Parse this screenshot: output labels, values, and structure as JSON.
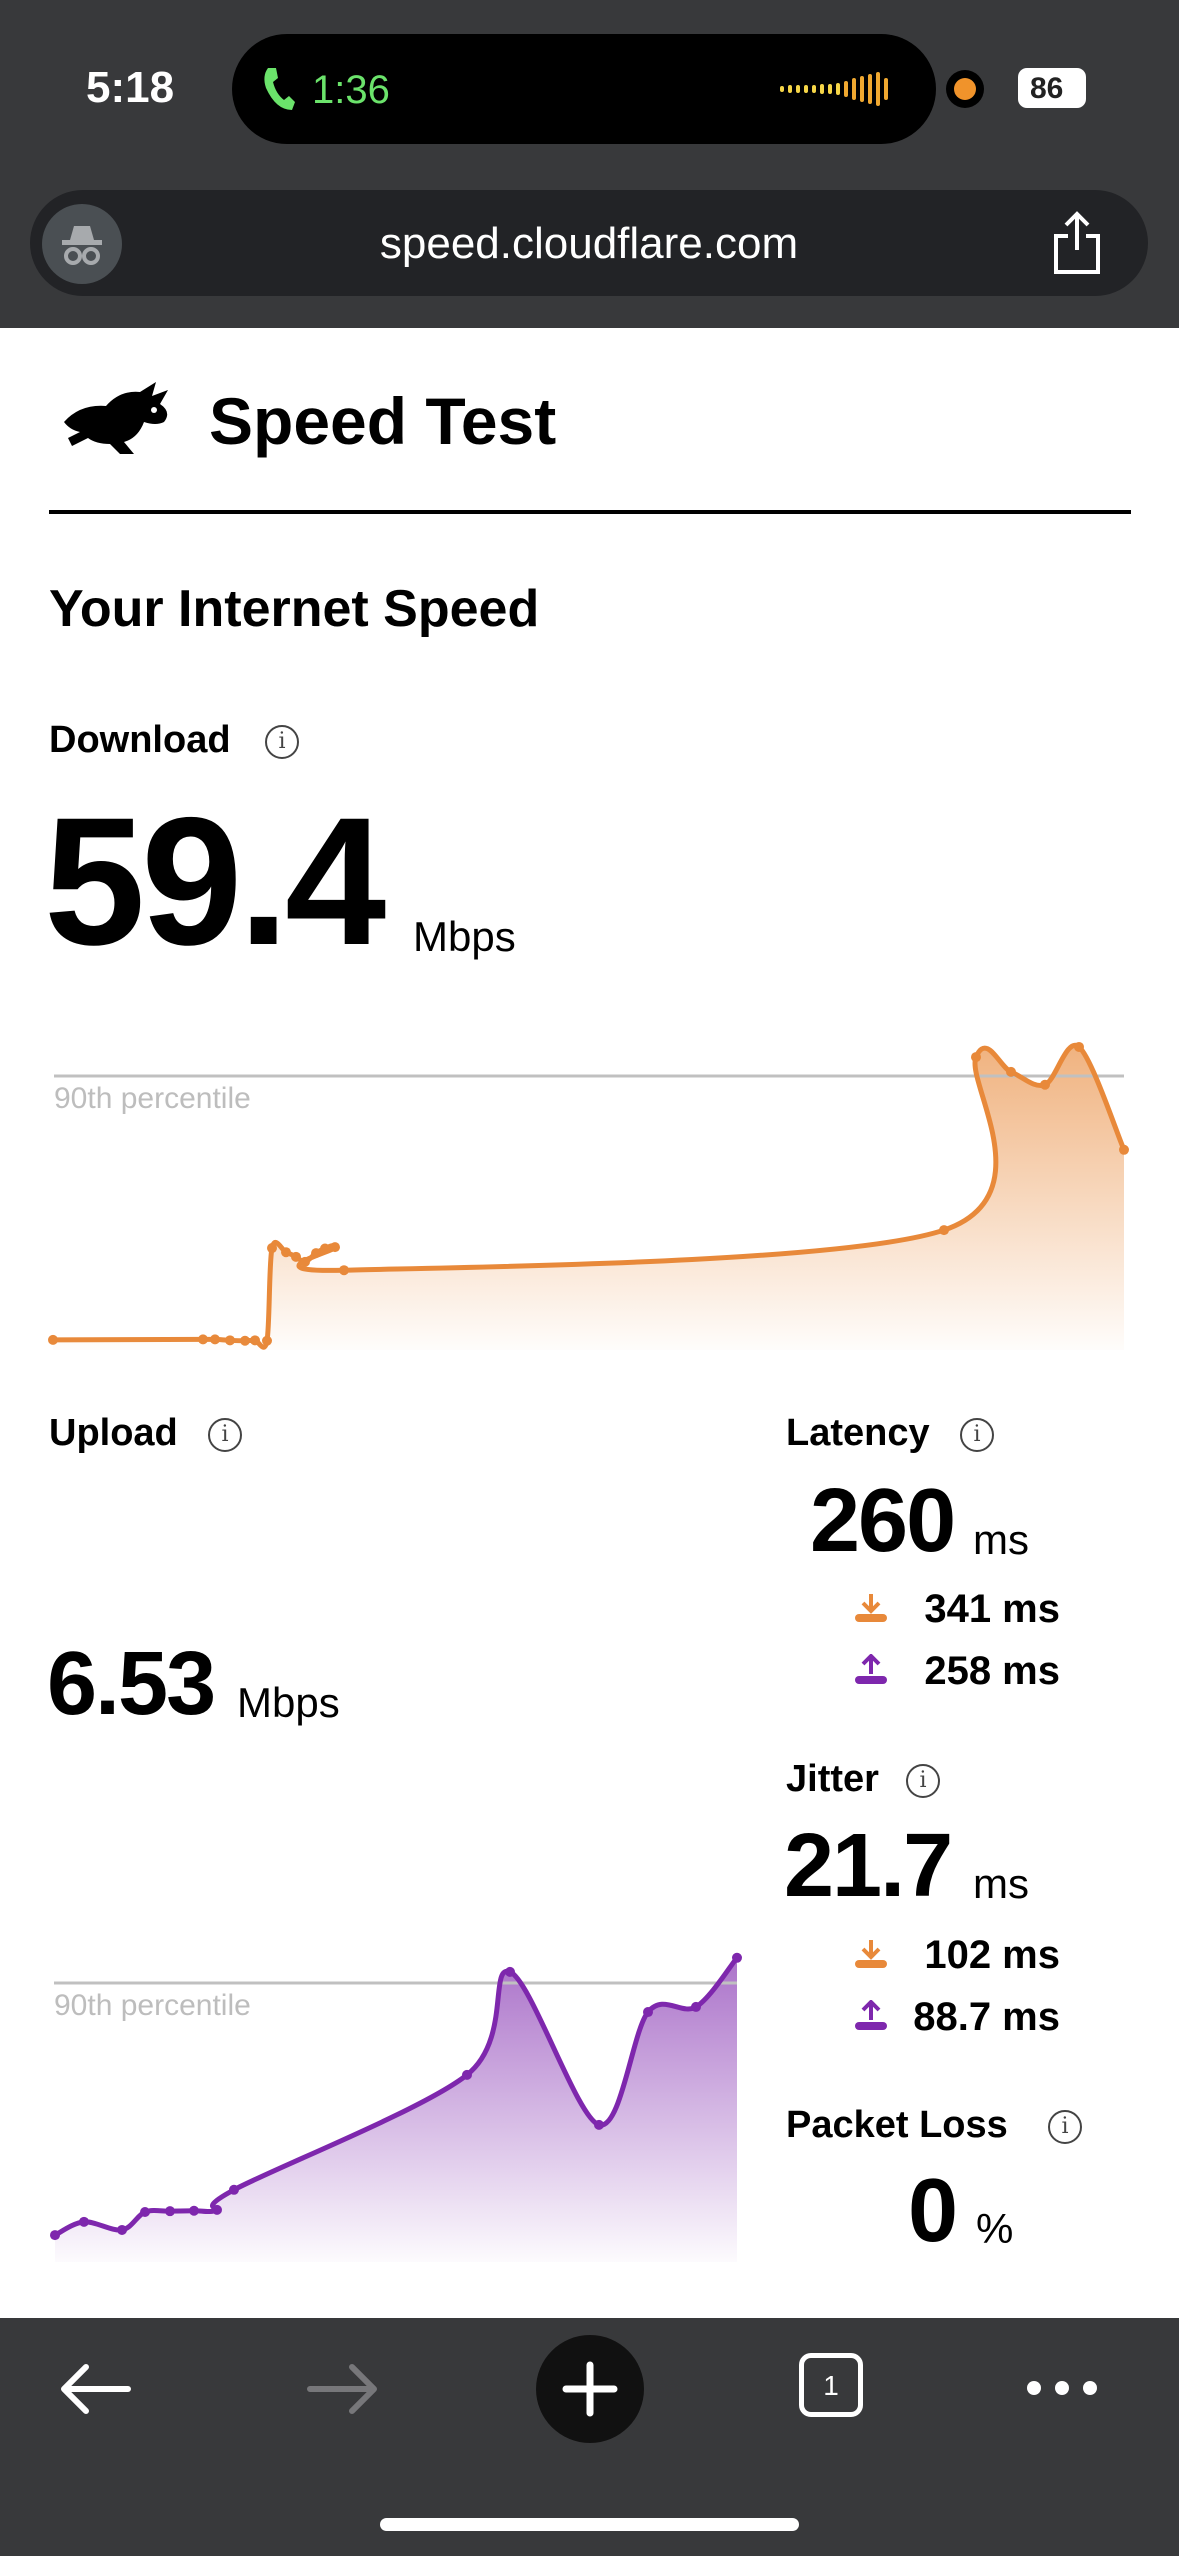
{
  "status_bar": {
    "time": "5:18",
    "call_duration": "1:36",
    "battery": "86"
  },
  "browser": {
    "url": "speed.cloudflare.com",
    "incognito_icon": "incognito-icon",
    "share_icon": "share-icon"
  },
  "header": {
    "title": "Speed Test",
    "logo": "rabbit-logo"
  },
  "main": {
    "section_title": "Your Internet Speed",
    "download": {
      "label": "Download",
      "value": "59.4",
      "unit": "Mbps",
      "percentile_label": "90th percentile"
    },
    "upload": {
      "label": "Upload",
      "value": "6.53",
      "unit": "Mbps",
      "percentile_label": "90th percentile"
    },
    "latency": {
      "label": "Latency",
      "value": "260",
      "unit": "ms",
      "download_value": "341 ms",
      "upload_value": "258 ms"
    },
    "jitter": {
      "label": "Jitter",
      "value": "21.7",
      "unit": "ms",
      "download_value": "102 ms",
      "upload_value": "88.7 ms"
    },
    "packet_loss": {
      "label": "Packet Loss",
      "value": "0",
      "unit": "%"
    }
  },
  "colors": {
    "download": "#e8893a",
    "upload": "#7e27ad",
    "percentile_line": "#c0c0c0"
  },
  "chart_data": [
    {
      "type": "area",
      "series": [
        {
          "values": [
            2.2,
            2.3,
            2.3,
            2.1,
            2.0,
            2.1,
            2.0,
            22.1,
            21.2,
            20.2,
            19.1,
            21.0,
            22.0,
            22.3,
            17.3,
            26.0,
            63.5,
            60.3,
            57.5,
            65.7,
            43.4
          ]
        }
      ],
      "reference_line": {
        "label": "90th percentile",
        "value": 59.4
      },
      "grid": false
    },
    {
      "type": "area",
      "series": [
        {
          "values": [
            0.63,
            0.94,
            0.75,
            1.17,
            1.19,
            1.2,
            1.22,
            1.69,
            4.38,
            6.79,
            3.21,
            5.85,
            5.97,
            7.12
          ]
        }
      ],
      "reference_line": {
        "label": "90th percentile",
        "value": 6.53
      },
      "grid": false
    }
  ],
  "toolbar": {
    "tab_count": "1"
  }
}
